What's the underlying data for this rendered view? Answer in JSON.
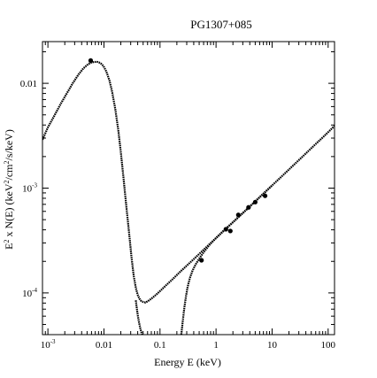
{
  "chart_data": {
    "type": "scatter",
    "title": "PG1307+085",
    "xlabel": "Energy E (keV)",
    "ylabel": "E² x N(E) (keV²/cm²/s/keV)",
    "x_scale": "log",
    "y_scale": "log",
    "xlim": [
      0.0008,
      130
    ],
    "ylim": [
      4e-05,
      0.025
    ],
    "grid": false,
    "x_ticks": [
      {
        "value": 0.001,
        "mantissa": "10",
        "exp": "-3"
      },
      {
        "value": 0.01,
        "mantissa": "0.01",
        "exp": ""
      },
      {
        "value": 0.1,
        "mantissa": "0.1",
        "exp": ""
      },
      {
        "value": 1,
        "mantissa": "1",
        "exp": ""
      },
      {
        "value": 10,
        "mantissa": "10",
        "exp": ""
      },
      {
        "value": 100,
        "mantissa": "100",
        "exp": ""
      }
    ],
    "y_ticks": [
      {
        "value": 0.0001,
        "mantissa": "10",
        "exp": "-4"
      },
      {
        "value": 0.001,
        "mantissa": "10",
        "exp": "-3"
      },
      {
        "value": 0.01,
        "mantissa": "0.01",
        "exp": ""
      }
    ],
    "series": [
      {
        "style": "dotted-curve",
        "x": [
          0.0008,
          0.001,
          0.0013,
          0.0017,
          0.0022,
          0.0028,
          0.0035,
          0.0043,
          0.0052,
          0.006,
          0.0068,
          0.0077,
          0.0087,
          0.0098,
          0.011,
          0.0125,
          0.014,
          0.016,
          0.018,
          0.02,
          0.022,
          0.025,
          0.028,
          0.031,
          0.034,
          0.037,
          0.04,
          0.043,
          0.046,
          0.05,
          0.055,
          0.06,
          0.07,
          0.085,
          0.1,
          0.13,
          0.17,
          0.22,
          0.3,
          0.4,
          0.55,
          0.75,
          1,
          1.4,
          2,
          3,
          4.5,
          7,
          10,
          15,
          22,
          35,
          55,
          85,
          130
        ],
        "y": [
          0.0029,
          0.0038,
          0.0049,
          0.0064,
          0.0081,
          0.0101,
          0.0121,
          0.0139,
          0.0152,
          0.0158,
          0.016,
          0.016,
          0.0156,
          0.0146,
          0.013,
          0.0107,
          0.0083,
          0.0056,
          0.0036,
          0.0022,
          0.00135,
          0.00068,
          0.00038,
          0.00022,
          0.000145,
          0.000112,
          9.6e-05,
          8.8e-05,
          8.4e-05,
          8.2e-05,
          8.1e-05,
          8.3e-05,
          8.8e-05,
          9.6e-05,
          0.000104,
          0.000119,
          0.000136,
          0.000156,
          0.000182,
          0.00021,
          0.000247,
          0.000289,
          0.000333,
          0.000395,
          0.000472,
          0.000578,
          0.000708,
          0.000885,
          0.00106,
          0.0013,
          0.00158,
          0.002,
          0.00252,
          0.00314,
          0.00392
        ]
      },
      {
        "style": "dotted-curve",
        "x": [
          0.037,
          0.0385,
          0.04,
          0.0415,
          0.043,
          0.0445,
          0.046,
          0.048
        ],
        "y": [
          8.5e-05,
          7.2e-05,
          6.2e-05,
          5.5e-05,
          5e-05,
          4.6e-05,
          4.3e-05,
          4e-05
        ]
      },
      {
        "style": "dotted-curve",
        "x": [
          0.24,
          0.255,
          0.27,
          0.29,
          0.31,
          0.34,
          0.38,
          0.43,
          0.5,
          0.6,
          0.75,
          1,
          1.4,
          2,
          3,
          4.5,
          7,
          10
        ],
        "y": [
          4e-05,
          5.4e-05,
          7e-05,
          9.2e-05,
          0.000113,
          0.000138,
          0.000163,
          0.000186,
          0.000212,
          0.000244,
          0.000284,
          0.000335,
          0.000398,
          0.000472,
          0.000578,
          0.000708,
          0.000885,
          0.00106
        ]
      },
      {
        "style": "points",
        "x": [
          0.0058,
          0.55,
          1.5,
          1.8,
          2.5,
          3.8,
          5,
          7.5
        ],
        "y": [
          0.0165,
          0.000205,
          0.000405,
          0.00039,
          0.000555,
          0.000655,
          0.000735,
          0.000845
        ]
      }
    ]
  }
}
